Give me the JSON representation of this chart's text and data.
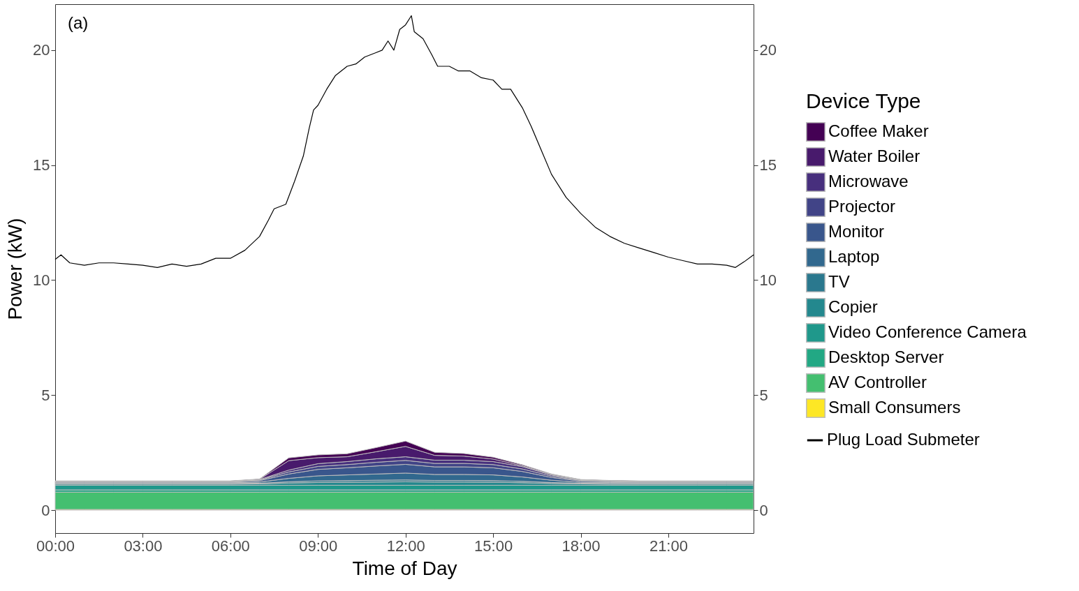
{
  "chart_data": {
    "type": "area",
    "stacked": true,
    "xlabel": "Time of Day",
    "ylabel": "Power (kW)",
    "legend_title": "Device Type",
    "legend": "right",
    "annotations": [
      "(a)"
    ],
    "x": [
      0,
      1,
      2,
      3,
      4,
      5,
      6,
      7,
      8,
      9,
      10,
      11,
      12,
      13,
      14,
      15,
      16,
      17,
      18,
      19,
      20,
      21,
      22,
      23,
      23.92
    ],
    "xlim": [
      0,
      23.92
    ],
    "xticks": [
      {
        "value": 0,
        "label": "00:00"
      },
      {
        "value": 3,
        "label": "03:00"
      },
      {
        "value": 6,
        "label": "06:00"
      },
      {
        "value": 9,
        "label": "09:00"
      },
      {
        "value": 12,
        "label": "12:00"
      },
      {
        "value": 15,
        "label": "15:00"
      },
      {
        "value": 18,
        "label": "18:00"
      },
      {
        "value": 21,
        "label": "21:00"
      }
    ],
    "ylim": [
      -1,
      22
    ],
    "yticks": [
      0,
      5,
      10,
      15,
      20
    ],
    "y2lim": [
      -1,
      22
    ],
    "y2ticks": [
      0,
      5,
      10,
      15,
      20
    ],
    "series": [
      {
        "name": "Small Consumers",
        "color": "#fde725",
        "values": [
          0.03,
          0.03,
          0.03,
          0.03,
          0.03,
          0.03,
          0.03,
          0.03,
          0.03,
          0.03,
          0.03,
          0.03,
          0.03,
          0.03,
          0.03,
          0.03,
          0.03,
          0.03,
          0.03,
          0.03,
          0.03,
          0.03,
          0.03,
          0.03,
          0.03
        ]
      },
      {
        "name": "AV Controller",
        "color": "#44bf70",
        "values": [
          0.75,
          0.75,
          0.75,
          0.75,
          0.75,
          0.75,
          0.75,
          0.75,
          0.75,
          0.75,
          0.75,
          0.75,
          0.75,
          0.75,
          0.75,
          0.75,
          0.75,
          0.75,
          0.75,
          0.75,
          0.75,
          0.75,
          0.75,
          0.75,
          0.75
        ]
      },
      {
        "name": "Desktop Server",
        "color": "#22a884",
        "values": [
          0.1,
          0.1,
          0.1,
          0.1,
          0.1,
          0.1,
          0.1,
          0.1,
          0.1,
          0.1,
          0.1,
          0.1,
          0.1,
          0.1,
          0.1,
          0.1,
          0.1,
          0.1,
          0.1,
          0.1,
          0.1,
          0.1,
          0.1,
          0.1,
          0.1
        ]
      },
      {
        "name": "Video Conference Camera",
        "color": "#1f988b",
        "values": [
          0.2,
          0.2,
          0.2,
          0.2,
          0.2,
          0.2,
          0.2,
          0.2,
          0.2,
          0.2,
          0.2,
          0.2,
          0.2,
          0.2,
          0.2,
          0.2,
          0.2,
          0.2,
          0.2,
          0.2,
          0.2,
          0.2,
          0.2,
          0.2,
          0.2
        ]
      },
      {
        "name": "Copier",
        "color": "#23888e",
        "values": [
          0.05,
          0.05,
          0.05,
          0.05,
          0.05,
          0.05,
          0.05,
          0.06,
          0.1,
          0.12,
          0.13,
          0.14,
          0.15,
          0.14,
          0.14,
          0.13,
          0.11,
          0.08,
          0.06,
          0.05,
          0.05,
          0.05,
          0.05,
          0.05,
          0.05
        ]
      },
      {
        "name": "TV",
        "color": "#2a788e",
        "values": [
          0.03,
          0.03,
          0.03,
          0.03,
          0.03,
          0.03,
          0.03,
          0.03,
          0.05,
          0.07,
          0.07,
          0.08,
          0.08,
          0.07,
          0.07,
          0.07,
          0.06,
          0.04,
          0.03,
          0.03,
          0.03,
          0.03,
          0.03,
          0.03,
          0.03
        ]
      },
      {
        "name": "Laptop",
        "color": "#31688e",
        "values": [
          0.03,
          0.03,
          0.03,
          0.03,
          0.03,
          0.03,
          0.03,
          0.05,
          0.15,
          0.22,
          0.25,
          0.27,
          0.3,
          0.26,
          0.26,
          0.25,
          0.19,
          0.1,
          0.04,
          0.04,
          0.03,
          0.03,
          0.03,
          0.03,
          0.03
        ]
      },
      {
        "name": "Monitor",
        "color": "#39568c",
        "values": [
          0.03,
          0.03,
          0.03,
          0.03,
          0.03,
          0.03,
          0.03,
          0.06,
          0.19,
          0.28,
          0.31,
          0.35,
          0.38,
          0.33,
          0.33,
          0.31,
          0.24,
          0.12,
          0.05,
          0.04,
          0.03,
          0.03,
          0.03,
          0.03,
          0.03
        ]
      },
      {
        "name": "Projector",
        "color": "#414487",
        "values": [
          0.02,
          0.02,
          0.02,
          0.02,
          0.02,
          0.02,
          0.02,
          0.03,
          0.09,
          0.13,
          0.14,
          0.16,
          0.17,
          0.15,
          0.15,
          0.14,
          0.11,
          0.06,
          0.03,
          0.02,
          0.02,
          0.02,
          0.02,
          0.02,
          0.02
        ]
      },
      {
        "name": "Microwave",
        "color": "#472f7d",
        "values": [
          0.01,
          0.01,
          0.01,
          0.01,
          0.01,
          0.01,
          0.01,
          0.02,
          0.08,
          0.12,
          0.13,
          0.15,
          0.16,
          0.14,
          0.14,
          0.13,
          0.1,
          0.05,
          0.02,
          0.01,
          0.01,
          0.01,
          0.01,
          0.01,
          0.01
        ]
      },
      {
        "name": "Water Boiler",
        "color": "#481a6c",
        "values": [
          0.01,
          0.01,
          0.01,
          0.01,
          0.01,
          0.01,
          0.01,
          0.01,
          0.41,
          0.26,
          0.21,
          0.31,
          0.45,
          0.21,
          0.18,
          0.11,
          0.04,
          0.02,
          0.01,
          0.01,
          0.01,
          0.01,
          0.01,
          0.01,
          0.01
        ]
      },
      {
        "name": "Coffee Maker",
        "color": "#440154",
        "values": [
          0.01,
          0.01,
          0.01,
          0.01,
          0.01,
          0.01,
          0.01,
          0.01,
          0.12,
          0.12,
          0.13,
          0.18,
          0.23,
          0.13,
          0.11,
          0.08,
          0.04,
          0.02,
          0.01,
          0.01,
          0.01,
          0.01,
          0.01,
          0.01,
          0.01
        ]
      },
      {
        "name": "Plug Load Submeter",
        "type": "line",
        "color": "#000000",
        "x": [
          0,
          0.2,
          0.5,
          1,
          1.5,
          2,
          2.5,
          3,
          3.5,
          4,
          4.5,
          5,
          5.5,
          6,
          6.5,
          7,
          7.3,
          7.5,
          7.9,
          8.2,
          8.5,
          8.7,
          8.85,
          9,
          9.3,
          9.6,
          10,
          10.3,
          10.6,
          11,
          11.2,
          11.4,
          11.6,
          11.8,
          12,
          12.2,
          12.3,
          12.6,
          12.9,
          13.1,
          13.5,
          13.8,
          14.2,
          14.6,
          15,
          15.3,
          15.6,
          16,
          16.3,
          16.7,
          17,
          17.5,
          18,
          18.5,
          19,
          19.5,
          20,
          20.5,
          21,
          21.5,
          22,
          22.5,
          23,
          23.3,
          23.6,
          23.92
        ],
        "values": [
          10.9,
          11.1,
          10.75,
          10.65,
          10.75,
          10.75,
          10.7,
          10.65,
          10.55,
          10.7,
          10.6,
          10.7,
          10.95,
          10.95,
          11.3,
          11.9,
          12.6,
          13.1,
          13.3,
          14.3,
          15.4,
          16.6,
          17.4,
          17.6,
          18.3,
          18.9,
          19.3,
          19.4,
          19.7,
          19.9,
          20,
          20.4,
          20,
          20.9,
          21.1,
          21.5,
          20.8,
          20.5,
          19.8,
          19.3,
          19.3,
          19.1,
          19.1,
          18.8,
          18.7,
          18.3,
          18.3,
          17.5,
          16.7,
          15.5,
          14.6,
          13.6,
          12.9,
          12.3,
          11.9,
          11.6,
          11.4,
          11.2,
          11,
          10.85,
          10.7,
          10.7,
          10.65,
          10.55,
          10.8,
          11.1
        ]
      }
    ]
  }
}
